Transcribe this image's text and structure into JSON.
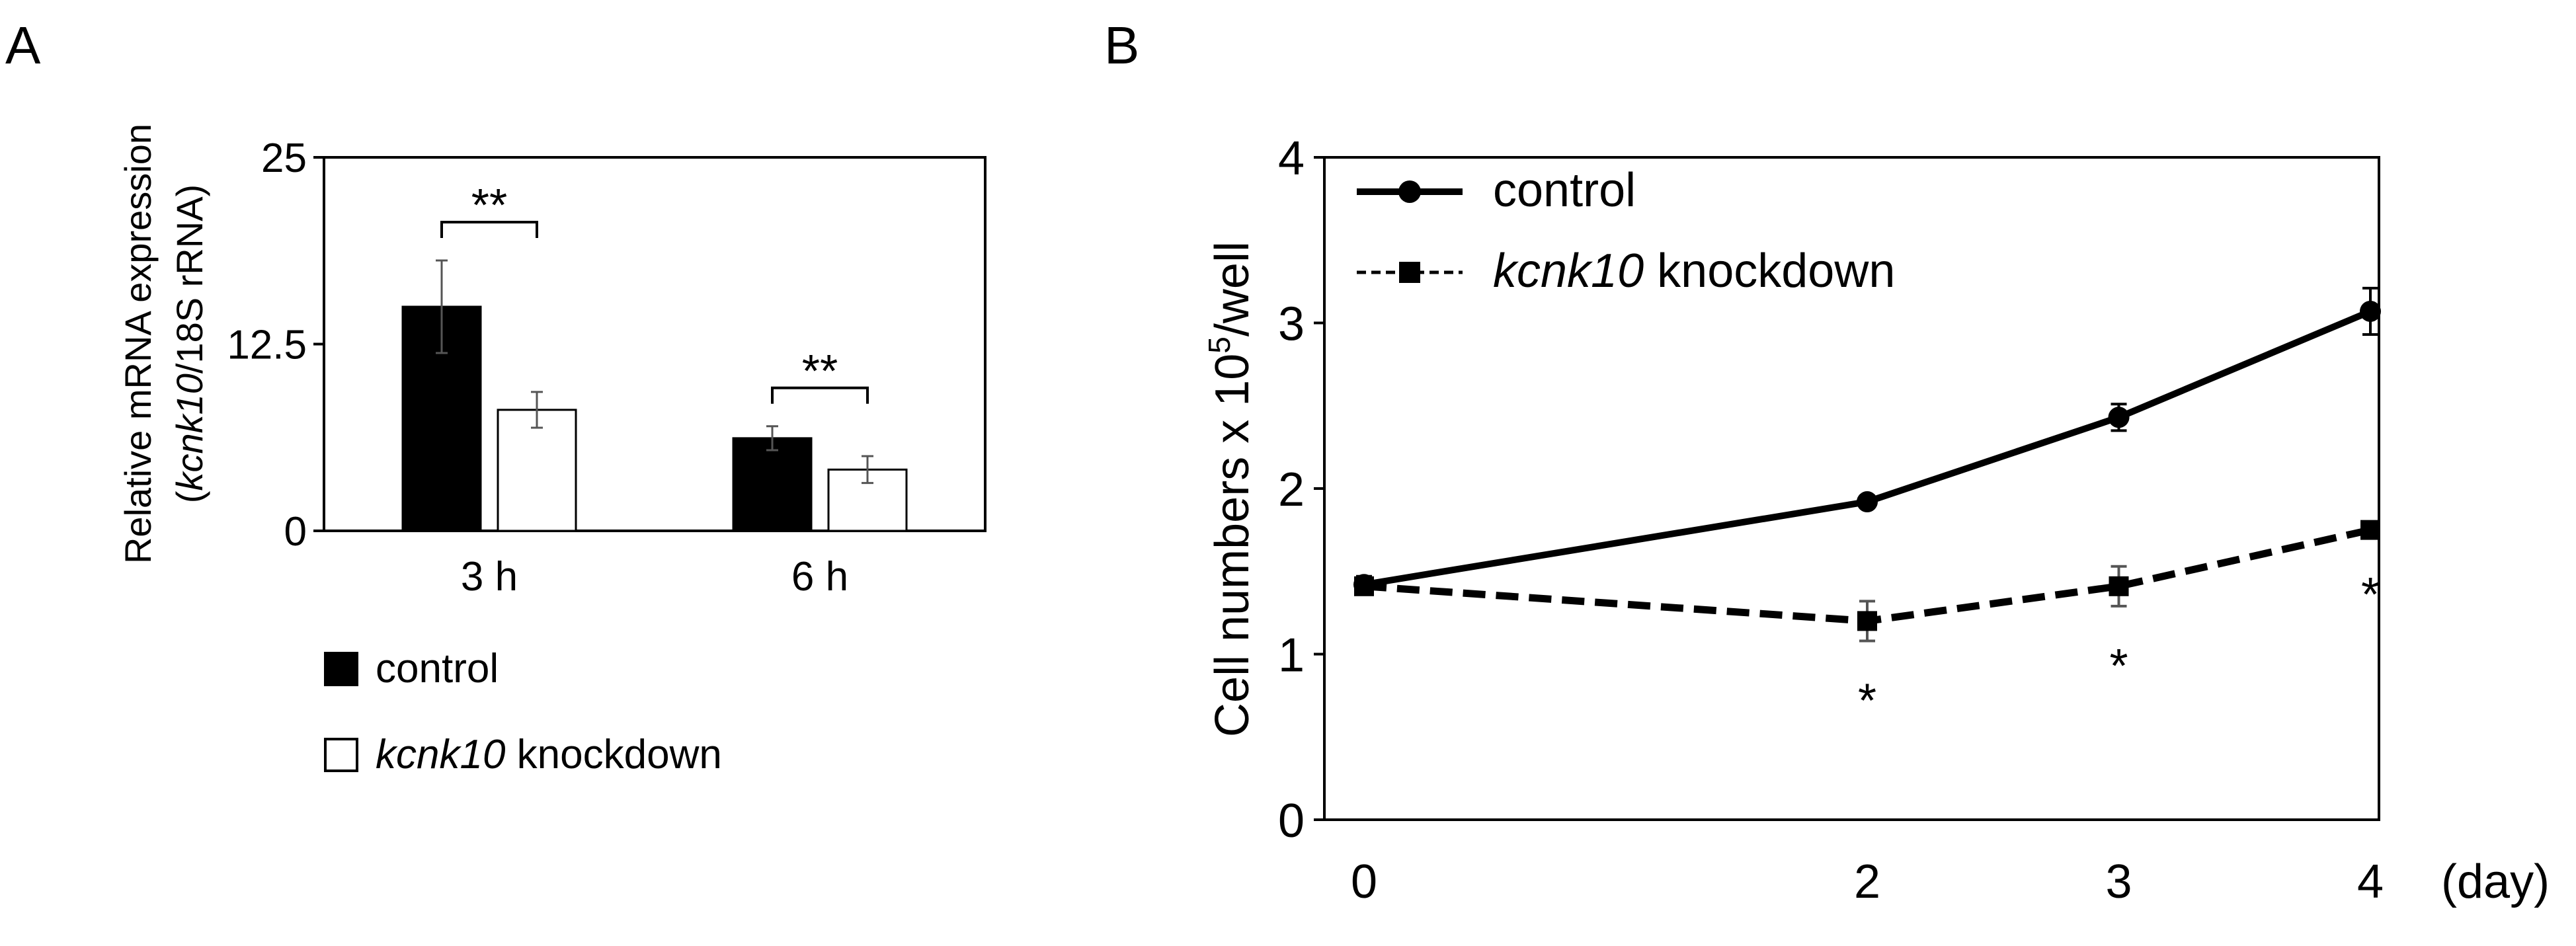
{
  "chart_data": [
    {
      "panel": "A",
      "type": "bar",
      "ylabel_line1": "Relative mRNA expression",
      "ylabel_line2_italic": "kcnk10",
      "ylabel_line2_rest": "/18S rRNA)",
      "ylabel_line2_open": "(",
      "ylim": [
        0,
        25
      ],
      "yticks": [
        0,
        12.5,
        25
      ],
      "ytick_labels": [
        "0",
        "12.5",
        "25"
      ],
      "categories": [
        "3 h",
        "6 h"
      ],
      "series": [
        {
          "name": "control",
          "values": [
            15.0,
            6.2
          ],
          "errors": [
            3.1,
            0.8
          ],
          "fill": "#000000"
        },
        {
          "name": "kcnk10 knockdown",
          "values": [
            8.1,
            4.1
          ],
          "errors": [
            1.2,
            0.9
          ],
          "fill": "#ffffff"
        }
      ],
      "significance": [
        "**",
        "**"
      ],
      "legend": [
        {
          "italic": "",
          "text": "control"
        },
        {
          "italic": "kcnk10",
          "text": " knockdown"
        }
      ]
    },
    {
      "panel": "B",
      "type": "line",
      "ylabel": "Cell numbers x 10",
      "ylabel_sup": "5",
      "ylabel_suffix": "/well",
      "xlabel": "(day)",
      "ylim": [
        0,
        4
      ],
      "yticks": [
        0,
        1,
        2,
        3,
        4
      ],
      "ytick_labels": [
        "0",
        "1",
        "2",
        "3",
        "4"
      ],
      "x": [
        0,
        2,
        3,
        4
      ],
      "xtick_labels": [
        "0",
        "2",
        "3",
        "4"
      ],
      "xlim": [
        0,
        4
      ],
      "series": [
        {
          "name": "control",
          "values": [
            1.42,
            1.92,
            2.43,
            3.07
          ],
          "errors": [
            0.05,
            0.02,
            0.08,
            0.14
          ],
          "marker": "circle",
          "dash": "solid"
        },
        {
          "name": "kcnk10 knockdown",
          "values": [
            1.41,
            1.2,
            1.41,
            1.75
          ],
          "errors": [
            0.05,
            0.12,
            0.12,
            0.03
          ],
          "marker": "square",
          "dash": "dashed"
        }
      ],
      "significance_marks": [
        "*",
        "*",
        "*"
      ],
      "significance_x": [
        2,
        3,
        4
      ],
      "legend": [
        {
          "italic": "",
          "text": "control"
        },
        {
          "italic": "kcnk10",
          "text": " knockdown"
        }
      ]
    }
  ],
  "panel_labels": [
    "A",
    "B"
  ],
  "colors": {
    "ink": "#000000",
    "error_gray": "#555555",
    "background": "#ffffff"
  }
}
